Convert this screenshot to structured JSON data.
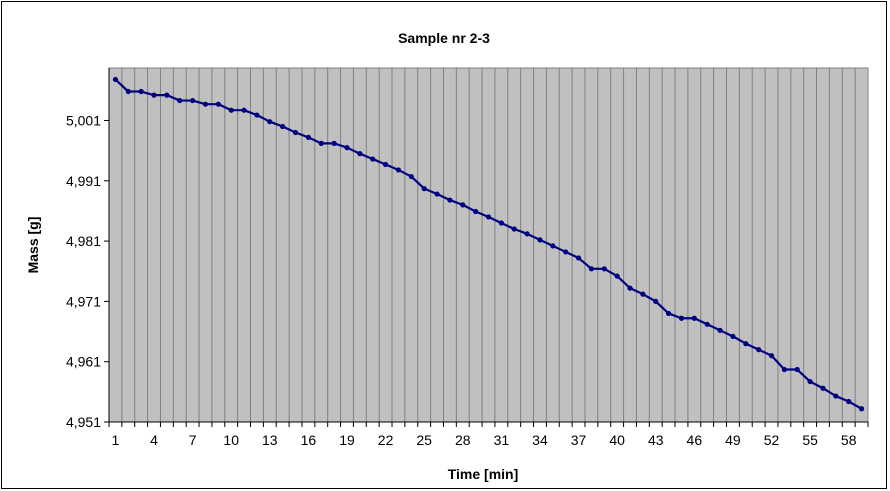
{
  "chart_data": {
    "type": "line",
    "title": "Sample nr 2-3",
    "xlabel": "Time [min]",
    "ylabel": "Mass [g]",
    "ylim": [
      4.951,
      5.0097
    ],
    "y_ticks": [
      4.951,
      4.961,
      4.971,
      4.981,
      4.991,
      5.001
    ],
    "y_tick_labels": [
      "4,951",
      "4,961",
      "4,971",
      "4,981",
      "4,991",
      "5,001"
    ],
    "x_range": [
      1,
      59
    ],
    "x_ticks": [
      1,
      4,
      7,
      10,
      13,
      16,
      19,
      22,
      25,
      28,
      31,
      34,
      37,
      40,
      43,
      46,
      49,
      52,
      55,
      58
    ],
    "x_tick_labels": [
      "1",
      "4",
      "7",
      "10",
      "13",
      "16",
      "19",
      "22",
      "25",
      "28",
      "31",
      "34",
      "37",
      "40",
      "43",
      "46",
      "49",
      "52",
      "55",
      "58"
    ],
    "grid": "vertical",
    "plot_background": "#c0c0c0",
    "gridline_color": "#808080",
    "line_color": "#000080",
    "series": [
      {
        "x": [
          1,
          2,
          3,
          4,
          5,
          6,
          7,
          8,
          9,
          10,
          11,
          12,
          13,
          14,
          15,
          16,
          17,
          18,
          19,
          20,
          21,
          22,
          23,
          24,
          25,
          26,
          27,
          28,
          29,
          30,
          31,
          32,
          33,
          34,
          35,
          36,
          37,
          38,
          39,
          40,
          41,
          42,
          43,
          44,
          45,
          46,
          47,
          48,
          49,
          50,
          51,
          52,
          53,
          54,
          55,
          56,
          57,
          58,
          59
        ],
        "values": [
          5.0078,
          5.0058,
          5.0058,
          5.0052,
          5.0052,
          5.0043,
          5.0043,
          5.0037,
          5.0037,
          5.0027,
          5.0027,
          5.0019,
          5.0008,
          5.0,
          4.999,
          4.9982,
          4.9972,
          4.9972,
          4.9965,
          4.9955,
          4.9946,
          4.9937,
          4.9928,
          4.9917,
          4.9897,
          4.9888,
          4.9878,
          4.987,
          4.9859,
          4.985,
          4.984,
          4.983,
          4.9822,
          4.9812,
          4.9802,
          4.9792,
          4.9782,
          4.9764,
          4.9764,
          4.9752,
          4.9732,
          4.9722,
          4.971,
          4.969,
          4.9682,
          4.9682,
          4.9672,
          4.9662,
          4.9652,
          4.964,
          4.963,
          4.962,
          4.9597,
          4.9597,
          4.9577,
          4.9566,
          4.9553,
          4.9544,
          4.9532
        ]
      }
    ]
  }
}
